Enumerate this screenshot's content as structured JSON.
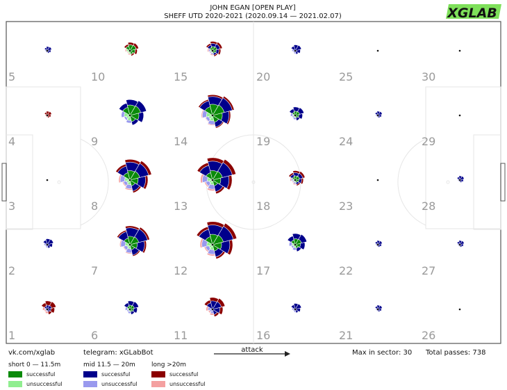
{
  "header": {
    "title": "JOHN EGAN [OPEN PLAY]",
    "subtitle": "SHEFF UTD 2020-2021 (2020.09.14 — 2021.02.07)",
    "logo": "XGLAB"
  },
  "footer": {
    "vk": "vk.com/xglab",
    "telegram": "telegram: xGLabBot",
    "attack_label": "attack",
    "max_label": "Max in sector: 30",
    "total_label": "Total passes: 738"
  },
  "legend": {
    "groups": [
      {
        "name": "short 0 — 11.5m",
        "items": [
          {
            "label": "successful",
            "color": "#0a8a0a"
          },
          {
            "label": "unsuccessful",
            "color": "#90ee90"
          }
        ]
      },
      {
        "name": "mid 11.5 — 20m",
        "items": [
          {
            "label": "successful",
            "color": "#00008b"
          },
          {
            "label": "unsuccessful",
            "color": "#9999ee"
          }
        ]
      },
      {
        "name": "long >20m",
        "items": [
          {
            "label": "successful",
            "color": "#8b0000"
          },
          {
            "label": "unsuccessful",
            "color": "#f4a0a0"
          }
        ]
      }
    ]
  },
  "chart_data": {
    "type": "radial-sector-grid",
    "max_in_sector": 30,
    "total_passes": 738,
    "zones": [
      {
        "zone": 1,
        "short": 0,
        "mid": 1,
        "long": 4
      },
      {
        "zone": 2,
        "short": 0,
        "mid": 2,
        "long": 1
      },
      {
        "zone": 3,
        "short": 0,
        "mid": 0,
        "long": 0
      },
      {
        "zone": 4,
        "short": 0,
        "mid": 0,
        "long": 1
      },
      {
        "zone": 5,
        "short": 0,
        "mid": 1,
        "long": 1
      },
      {
        "zone": 6,
        "short": 1,
        "mid": 4,
        "long": 2
      },
      {
        "zone": 7,
        "short": 4,
        "mid": 16,
        "long": 20
      },
      {
        "zone": 8,
        "short": 5,
        "mid": 18,
        "long": 24
      },
      {
        "zone": 9,
        "short": 6,
        "mid": 14,
        "long": 10
      },
      {
        "zone": 10,
        "short": 2,
        "mid": 2,
        "long": 4
      },
      {
        "zone": 11,
        "short": 0,
        "mid": 4,
        "long": 8
      },
      {
        "zone": 12,
        "short": 6,
        "mid": 22,
        "long": 30
      },
      {
        "zone": 13,
        "short": 5,
        "mid": 20,
        "long": 28
      },
      {
        "zone": 14,
        "short": 7,
        "mid": 20,
        "long": 24
      },
      {
        "zone": 15,
        "short": 1,
        "mid": 3,
        "long": 5
      },
      {
        "zone": 16,
        "short": 0,
        "mid": 2,
        "long": 2
      },
      {
        "zone": 17,
        "short": 2,
        "mid": 7,
        "long": 4
      },
      {
        "zone": 18,
        "short": 1,
        "mid": 3,
        "long": 5
      },
      {
        "zone": 19,
        "short": 1,
        "mid": 4,
        "long": 2
      },
      {
        "zone": 20,
        "short": 0,
        "mid": 2,
        "long": 1
      },
      {
        "zone": 21,
        "short": 0,
        "mid": 1,
        "long": 0
      },
      {
        "zone": 22,
        "short": 0,
        "mid": 1,
        "long": 0
      },
      {
        "zone": 23,
        "short": 0,
        "mid": 0,
        "long": 0
      },
      {
        "zone": 24,
        "short": 0,
        "mid": 1,
        "long": 0
      },
      {
        "zone": 25,
        "short": 0,
        "mid": 0,
        "long": 0
      },
      {
        "zone": 26,
        "short": 0,
        "mid": 0,
        "long": 0
      },
      {
        "zone": 27,
        "short": 0,
        "mid": 1,
        "long": 0
      },
      {
        "zone": 28,
        "short": 0,
        "mid": 1,
        "long": 0
      },
      {
        "zone": 29,
        "short": 0,
        "mid": 0,
        "long": 0
      },
      {
        "zone": 30,
        "short": 0,
        "mid": 0,
        "long": 0
      }
    ]
  }
}
